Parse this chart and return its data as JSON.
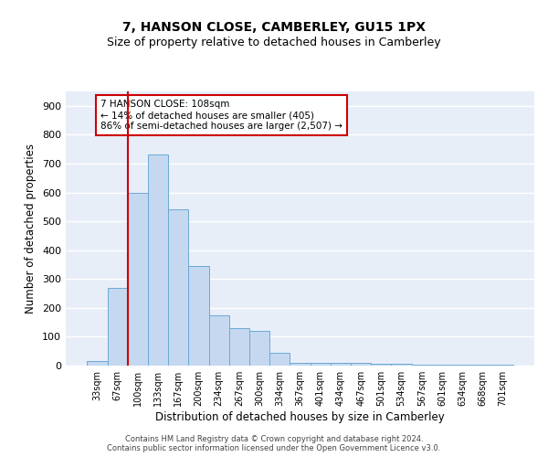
{
  "title_line1": "7, HANSON CLOSE, CAMBERLEY, GU15 1PX",
  "title_line2": "Size of property relative to detached houses in Camberley",
  "xlabel": "Distribution of detached houses by size in Camberley",
  "ylabel": "Number of detached properties",
  "categories": [
    "33sqm",
    "67sqm",
    "100sqm",
    "133sqm",
    "167sqm",
    "200sqm",
    "234sqm",
    "267sqm",
    "300sqm",
    "334sqm",
    "367sqm",
    "401sqm",
    "434sqm",
    "467sqm",
    "501sqm",
    "534sqm",
    "567sqm",
    "601sqm",
    "634sqm",
    "668sqm",
    "701sqm"
  ],
  "values": [
    15,
    270,
    600,
    730,
    540,
    345,
    175,
    130,
    120,
    45,
    8,
    10,
    10,
    8,
    5,
    5,
    3,
    2,
    2,
    3,
    2
  ],
  "bar_color": "#c5d8f0",
  "bar_edge_color": "#6aaad4",
  "vline_color": "#cc0000",
  "annotation_text": "7 HANSON CLOSE: 108sqm\n← 14% of detached houses are smaller (405)\n86% of semi-detached houses are larger (2,507) →",
  "annotation_box_color": "#ffffff",
  "annotation_box_edge": "#cc0000",
  "ylim": [
    0,
    950
  ],
  "yticks": [
    0,
    100,
    200,
    300,
    400,
    500,
    600,
    700,
    800,
    900
  ],
  "background_color": "#e8eef8",
  "grid_color": "#ffffff",
  "footnote": "Contains HM Land Registry data © Crown copyright and database right 2024.\nContains public sector information licensed under the Open Government Licence v3.0.",
  "title_fontsize": 10,
  "subtitle_fontsize": 9,
  "tick_fontsize": 7,
  "label_fontsize": 8.5,
  "annotation_fontsize": 7.5
}
